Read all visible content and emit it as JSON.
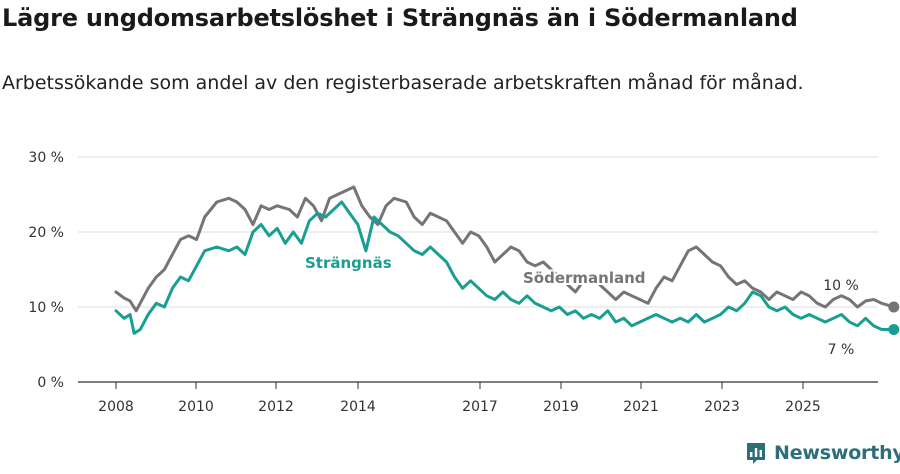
{
  "header": {
    "title": "Lägre ungdomsarbetslöshet i Strängnäs än i Södermanland",
    "subtitle": "Arbetssökande som andel av den registerbaserade arbetskraften månad för månad."
  },
  "brand": {
    "name": "Newsworthy"
  },
  "colors": {
    "strangnas": "#1a9e92",
    "sodermanland": "#757575",
    "grid": "#dddddd",
    "axis": "#333333"
  },
  "chart_data": {
    "type": "line",
    "title": "Lägre ungdomsarbetslöshet i Strängnäs än i Södermanland",
    "ylabel": "",
    "xlabel": "",
    "ylim": [
      0,
      30
    ],
    "xlim": [
      2007.2,
      2026.9
    ],
    "y_ticks": [
      0,
      10,
      20,
      30
    ],
    "y_tick_labels": [
      "0 %",
      "10 %",
      "20 %",
      "30 %"
    ],
    "x_ticks": [
      "2008",
      "2010",
      "2012",
      "2014",
      "2017",
      "2019",
      "2021",
      "2023",
      "2025"
    ],
    "series": [
      {
        "name": "Södermanland",
        "end_label": "10 %",
        "points": [
          [
            2008.0,
            12.0
          ],
          [
            2008.2,
            11.2
          ],
          [
            2008.35,
            10.8
          ],
          [
            2008.5,
            9.5
          ],
          [
            2008.65,
            11.0
          ],
          [
            2008.8,
            12.5
          ],
          [
            2009.0,
            14.0
          ],
          [
            2009.2,
            15.0
          ],
          [
            2009.4,
            17.0
          ],
          [
            2009.6,
            19.0
          ],
          [
            2009.8,
            19.5
          ],
          [
            2010.0,
            19.0
          ],
          [
            2010.2,
            22.0
          ],
          [
            2010.5,
            24.0
          ],
          [
            2010.8,
            24.5
          ],
          [
            2011.0,
            24.0
          ],
          [
            2011.2,
            23.0
          ],
          [
            2011.4,
            21.0
          ],
          [
            2011.6,
            23.5
          ],
          [
            2011.8,
            23.0
          ],
          [
            2012.0,
            23.5
          ],
          [
            2012.3,
            23.0
          ],
          [
            2012.5,
            22.0
          ],
          [
            2012.7,
            24.5
          ],
          [
            2012.9,
            23.5
          ],
          [
            2013.1,
            21.5
          ],
          [
            2013.3,
            24.5
          ],
          [
            2013.5,
            25.0
          ],
          [
            2013.7,
            25.5
          ],
          [
            2013.9,
            26.0
          ],
          [
            2014.1,
            23.5
          ],
          [
            2014.3,
            22.0
          ],
          [
            2014.5,
            21.0
          ],
          [
            2014.7,
            23.5
          ],
          [
            2014.9,
            24.5
          ],
          [
            2015.2,
            24.0
          ],
          [
            2015.4,
            22.0
          ],
          [
            2015.6,
            21.0
          ],
          [
            2015.8,
            22.5
          ],
          [
            2016.0,
            22.0
          ],
          [
            2016.2,
            21.5
          ],
          [
            2016.4,
            20.0
          ],
          [
            2016.6,
            18.5
          ],
          [
            2016.8,
            20.0
          ],
          [
            2017.0,
            19.5
          ],
          [
            2017.2,
            18.0
          ],
          [
            2017.4,
            16.0
          ],
          [
            2017.6,
            17.0
          ],
          [
            2017.8,
            18.0
          ],
          [
            2018.0,
            17.5
          ],
          [
            2018.2,
            16.0
          ],
          [
            2018.4,
            15.5
          ],
          [
            2018.6,
            16.0
          ],
          [
            2018.8,
            15.0
          ],
          [
            2019.0,
            14.0
          ],
          [
            2019.2,
            13.0
          ],
          [
            2019.4,
            12.0
          ],
          [
            2019.6,
            13.5
          ],
          [
            2019.8,
            14.0
          ],
          [
            2020.0,
            13.0
          ],
          [
            2020.2,
            12.0
          ],
          [
            2020.4,
            11.0
          ],
          [
            2020.6,
            12.0
          ],
          [
            2020.8,
            11.5
          ],
          [
            2021.0,
            11.0
          ],
          [
            2021.2,
            10.5
          ],
          [
            2021.4,
            12.5
          ],
          [
            2021.6,
            14.0
          ],
          [
            2021.8,
            13.5
          ],
          [
            2022.0,
            15.5
          ],
          [
            2022.2,
            17.5
          ],
          [
            2022.4,
            18.0
          ],
          [
            2022.6,
            17.0
          ],
          [
            2022.8,
            16.0
          ],
          [
            2023.0,
            15.5
          ],
          [
            2023.2,
            14.0
          ],
          [
            2023.4,
            13.0
          ],
          [
            2023.6,
            13.5
          ],
          [
            2023.8,
            12.5
          ],
          [
            2024.0,
            12.0
          ],
          [
            2024.2,
            11.0
          ],
          [
            2024.4,
            12.0
          ],
          [
            2024.6,
            11.5
          ],
          [
            2024.8,
            11.0
          ],
          [
            2025.0,
            12.0
          ],
          [
            2025.2,
            11.5
          ],
          [
            2025.4,
            10.5
          ],
          [
            2025.6,
            10.0
          ],
          [
            2025.8,
            11.0
          ],
          [
            2026.0,
            11.5
          ],
          [
            2026.2,
            11.0
          ],
          [
            2026.4,
            10.0
          ],
          [
            2026.6,
            10.8
          ],
          [
            2026.8,
            11.0
          ],
          [
            2027.0,
            10.5
          ],
          [
            2027.3,
            10.0
          ]
        ]
      },
      {
        "name": "Strängnäs",
        "end_label": "7 %",
        "points": [
          [
            2008.0,
            9.5
          ],
          [
            2008.2,
            8.5
          ],
          [
            2008.35,
            9.0
          ],
          [
            2008.45,
            6.5
          ],
          [
            2008.6,
            7.0
          ],
          [
            2008.8,
            9.0
          ],
          [
            2009.0,
            10.5
          ],
          [
            2009.2,
            10.0
          ],
          [
            2009.4,
            12.5
          ],
          [
            2009.6,
            14.0
          ],
          [
            2009.8,
            13.5
          ],
          [
            2010.0,
            15.5
          ],
          [
            2010.2,
            17.5
          ],
          [
            2010.5,
            18.0
          ],
          [
            2010.8,
            17.5
          ],
          [
            2011.0,
            18.0
          ],
          [
            2011.2,
            17.0
          ],
          [
            2011.4,
            20.0
          ],
          [
            2011.6,
            21.0
          ],
          [
            2011.8,
            19.5
          ],
          [
            2012.0,
            20.5
          ],
          [
            2012.2,
            18.5
          ],
          [
            2012.4,
            20.0
          ],
          [
            2012.6,
            18.5
          ],
          [
            2012.8,
            21.5
          ],
          [
            2013.0,
            22.5
          ],
          [
            2013.2,
            22.0
          ],
          [
            2013.4,
            23.0
          ],
          [
            2013.6,
            24.0
          ],
          [
            2013.8,
            22.5
          ],
          [
            2014.0,
            21.0
          ],
          [
            2014.2,
            17.5
          ],
          [
            2014.4,
            22.0
          ],
          [
            2014.6,
            21.0
          ],
          [
            2014.8,
            20.0
          ],
          [
            2015.0,
            19.5
          ],
          [
            2015.2,
            18.5
          ],
          [
            2015.4,
            17.5
          ],
          [
            2015.6,
            17.0
          ],
          [
            2015.8,
            18.0
          ],
          [
            2016.0,
            17.0
          ],
          [
            2016.2,
            16.0
          ],
          [
            2016.4,
            14.0
          ],
          [
            2016.6,
            12.5
          ],
          [
            2016.8,
            13.5
          ],
          [
            2017.0,
            12.5
          ],
          [
            2017.2,
            11.5
          ],
          [
            2017.4,
            11.0
          ],
          [
            2017.6,
            12.0
          ],
          [
            2017.8,
            11.0
          ],
          [
            2018.0,
            10.5
          ],
          [
            2018.2,
            11.5
          ],
          [
            2018.4,
            10.5
          ],
          [
            2018.6,
            10.0
          ],
          [
            2018.8,
            9.5
          ],
          [
            2019.0,
            10.0
          ],
          [
            2019.2,
            9.0
          ],
          [
            2019.4,
            9.5
          ],
          [
            2019.6,
            8.5
          ],
          [
            2019.8,
            9.0
          ],
          [
            2020.0,
            8.5
          ],
          [
            2020.2,
            9.5
          ],
          [
            2020.4,
            8.0
          ],
          [
            2020.6,
            8.5
          ],
          [
            2020.8,
            7.5
          ],
          [
            2021.0,
            8.0
          ],
          [
            2021.2,
            8.5
          ],
          [
            2021.4,
            9.0
          ],
          [
            2021.6,
            8.5
          ],
          [
            2021.8,
            8.0
          ],
          [
            2022.0,
            8.5
          ],
          [
            2022.2,
            8.0
          ],
          [
            2022.4,
            9.0
          ],
          [
            2022.6,
            8.0
          ],
          [
            2022.8,
            8.5
          ],
          [
            2023.0,
            9.0
          ],
          [
            2023.2,
            10.0
          ],
          [
            2023.4,
            9.5
          ],
          [
            2023.6,
            10.5
          ],
          [
            2023.8,
            12.0
          ],
          [
            2024.0,
            11.5
          ],
          [
            2024.2,
            10.0
          ],
          [
            2024.4,
            9.5
          ],
          [
            2024.6,
            10.0
          ],
          [
            2024.8,
            9.0
          ],
          [
            2025.0,
            8.5
          ],
          [
            2025.2,
            9.0
          ],
          [
            2025.4,
            8.5
          ],
          [
            2025.6,
            8.0
          ],
          [
            2025.8,
            8.5
          ],
          [
            2026.0,
            9.0
          ],
          [
            2026.2,
            8.0
          ],
          [
            2026.4,
            7.5
          ],
          [
            2026.6,
            8.5
          ],
          [
            2026.8,
            7.5
          ],
          [
            2027.0,
            7.0
          ],
          [
            2027.3,
            7.0
          ]
        ]
      }
    ],
    "annotations": [
      {
        "text": "Strängnäs",
        "series": "Strängnäs"
      },
      {
        "text": "Södermanland",
        "series": "Södermanland"
      }
    ]
  }
}
